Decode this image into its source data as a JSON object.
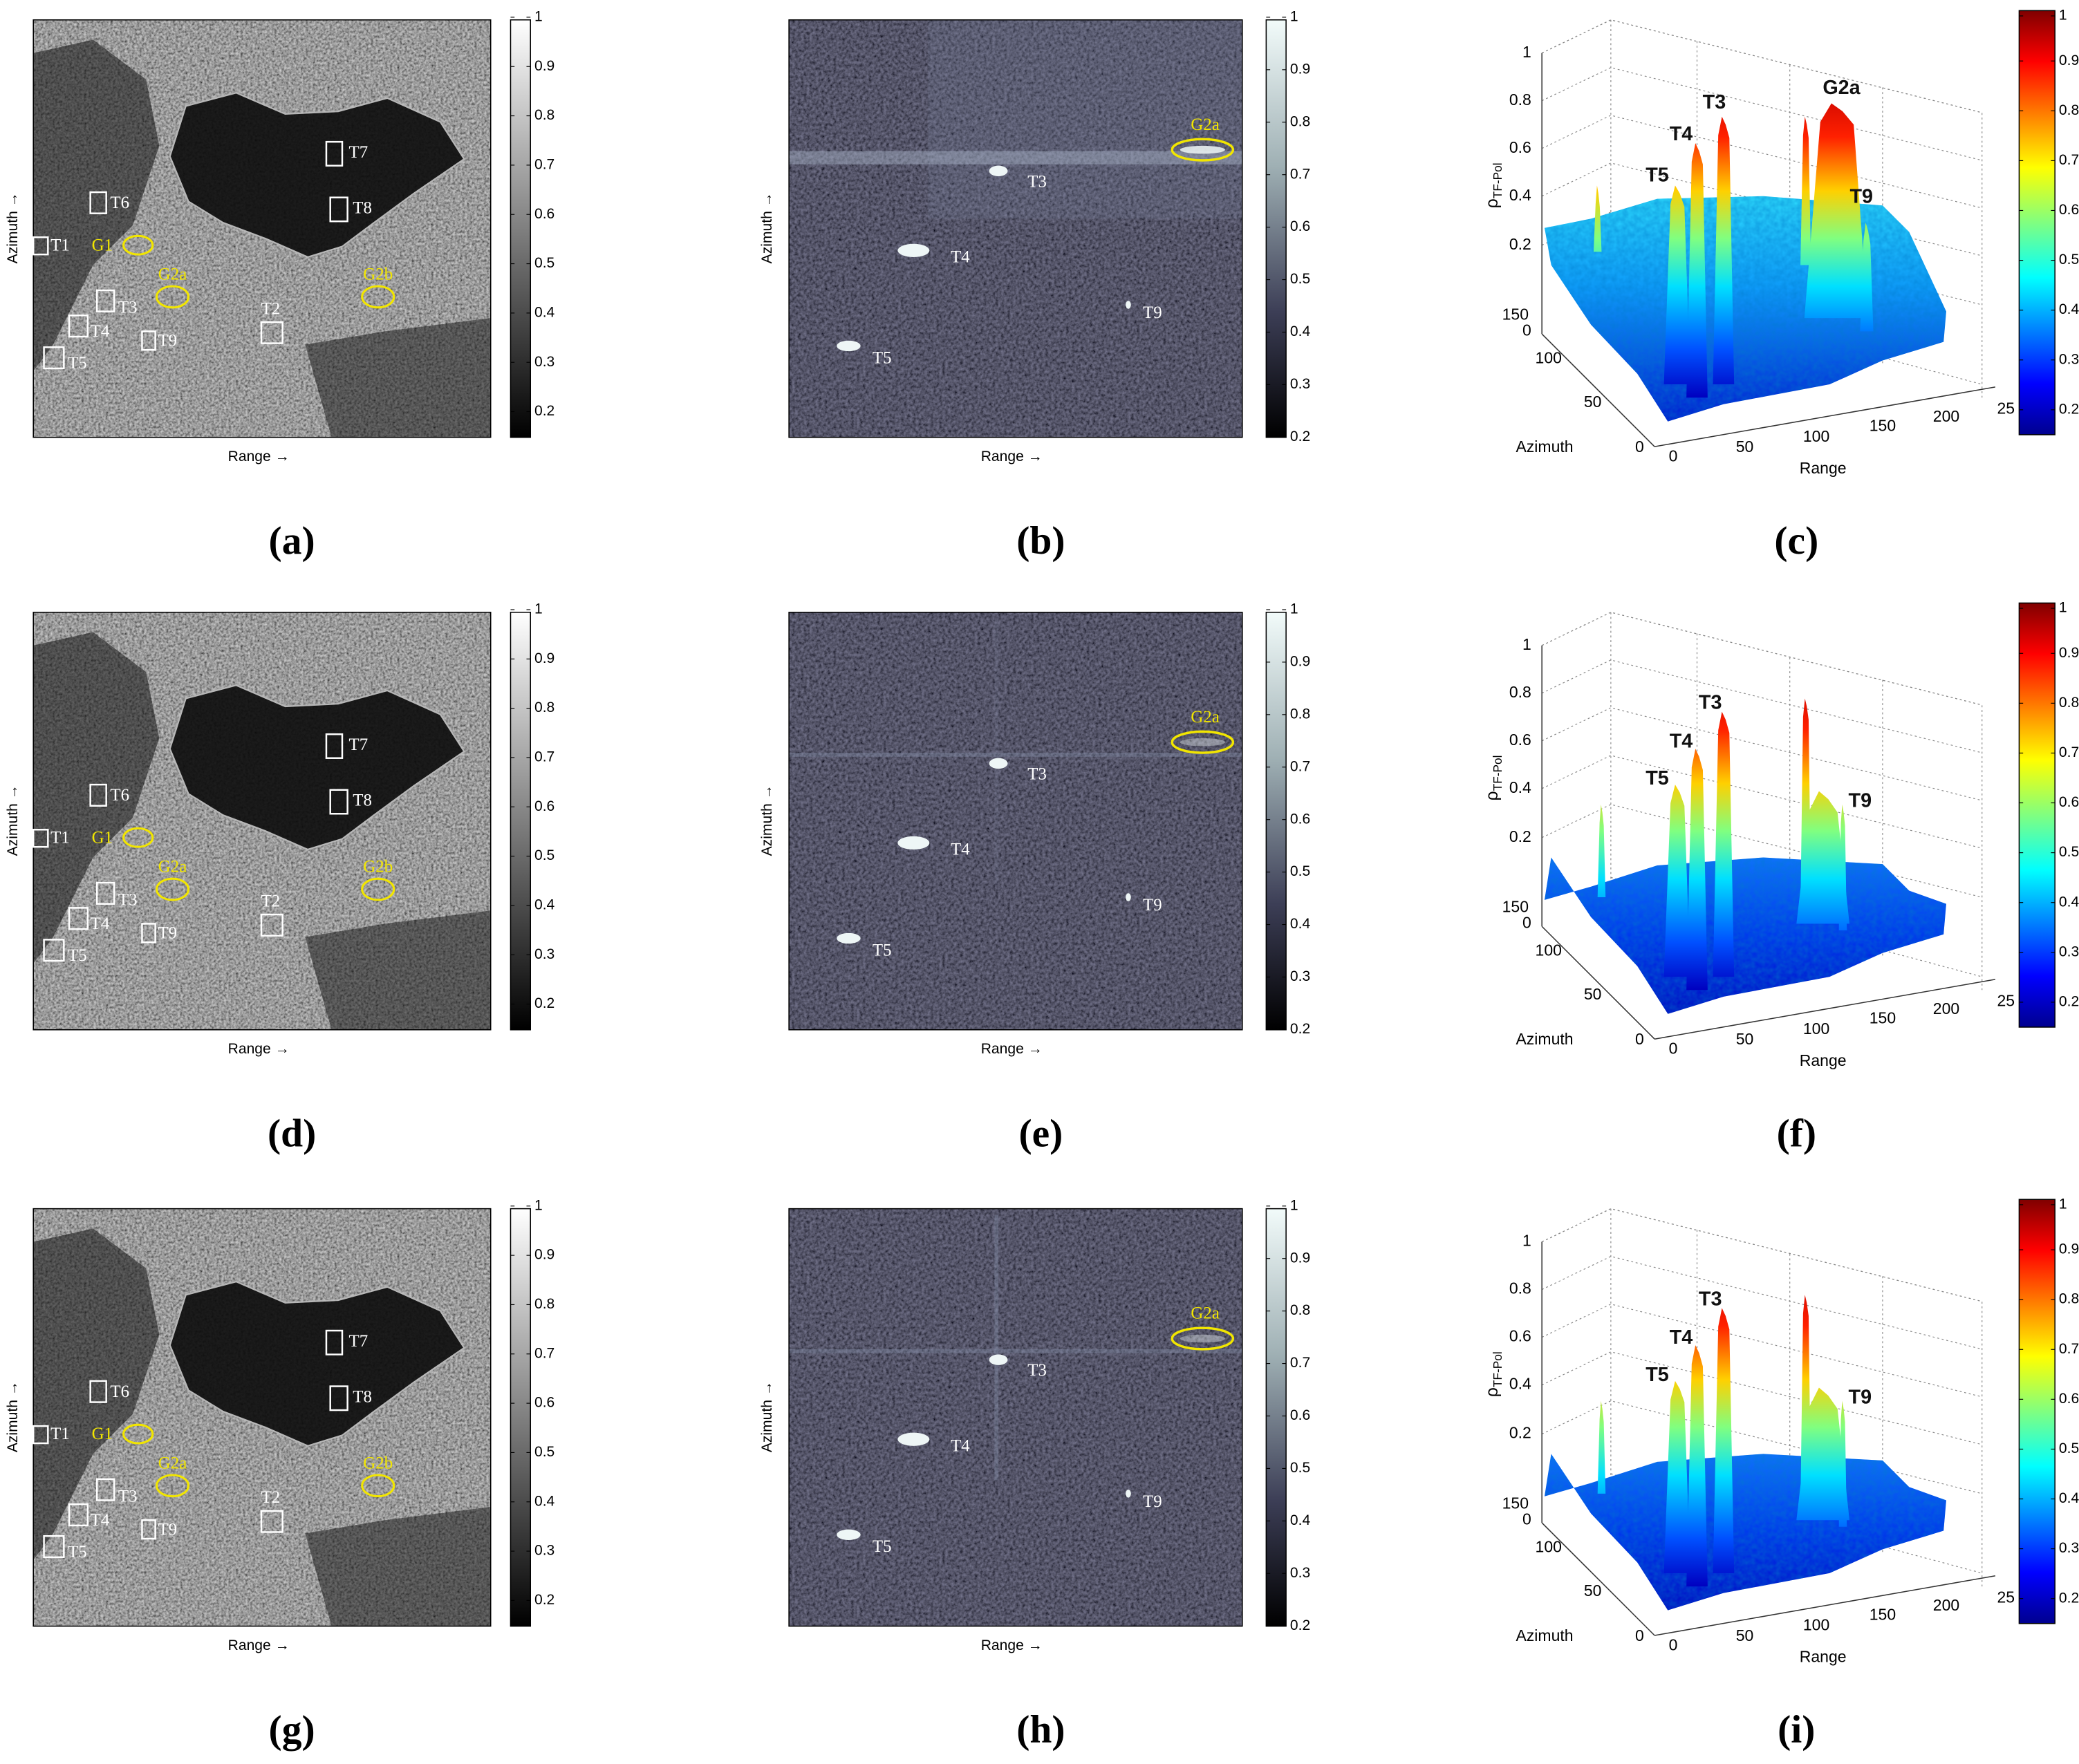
{
  "panels": [
    {
      "label": "(a)",
      "x_label": "Range →",
      "y_label": "Azimuth →",
      "colorbar_ticks": [
        1,
        0.9,
        0.8,
        0.7,
        0.6,
        0.5,
        0.4,
        0.3,
        0.2
      ],
      "annotations": [
        "T1",
        "T6",
        "G1",
        "T7",
        "T8",
        "G2a",
        "T2",
        "G2b",
        "T3",
        "T4",
        "T9",
        "T5"
      ]
    },
    {
      "label": "(b)",
      "x_label": "Range →",
      "y_label": "Azimuth →",
      "colorbar_ticks": [
        1,
        0.9,
        0.8,
        0.7,
        0.6,
        0.5,
        0.4,
        0.3,
        0.2
      ],
      "annotations": [
        "G2a",
        "T3",
        "T4",
        "T9",
        "T5"
      ]
    },
    {
      "label": "(c)",
      "x_label": "Range",
      "y_label": "Azimuth",
      "z_label": "ρ",
      "z_label_sub": "TF-Pol",
      "z_ticks": [
        0,
        0.2,
        0.4,
        0.6,
        0.8,
        1
      ],
      "azimuth_ticks": [
        0,
        50,
        100,
        150
      ],
      "range_ticks": [
        0,
        50,
        100,
        150,
        200,
        25
      ],
      "colorbar_ticks": [
        1,
        0.9,
        0.8,
        0.7,
        0.6,
        0.5,
        0.4,
        0.3,
        0.2
      ],
      "annotations": [
        "T5",
        "T4",
        "T3",
        "G2a",
        "T9"
      ]
    },
    {
      "label": "(d)",
      "x_label": "Range →",
      "y_label": "Azimuth →",
      "colorbar_ticks": [
        1,
        0.9,
        0.8,
        0.7,
        0.6,
        0.5,
        0.4,
        0.3,
        0.2
      ],
      "annotations": [
        "T1",
        "T6",
        "G1",
        "T7",
        "T8",
        "G2a",
        "T2",
        "G2b",
        "T3",
        "T4",
        "T9",
        "T5"
      ]
    },
    {
      "label": "(e)",
      "x_label": "Range →",
      "y_label": "Azimuth →",
      "colorbar_ticks": [
        1,
        0.9,
        0.8,
        0.7,
        0.6,
        0.5,
        0.4,
        0.3,
        0.2
      ],
      "annotations": [
        "G2a",
        "T3",
        "T4",
        "T9",
        "T5"
      ]
    },
    {
      "label": "(f)",
      "x_label": "Range",
      "y_label": "Azimuth",
      "z_label": "ρ",
      "z_label_sub": "TF-Pol",
      "z_ticks": [
        0,
        0.2,
        0.4,
        0.6,
        0.8,
        1
      ],
      "azimuth_ticks": [
        0,
        50,
        100,
        150
      ],
      "range_ticks": [
        0,
        50,
        100,
        150,
        200,
        25
      ],
      "colorbar_ticks": [
        1,
        0.9,
        0.8,
        0.7,
        0.6,
        0.5,
        0.4,
        0.3,
        0.2
      ],
      "annotations": [
        "T5",
        "T4",
        "T3",
        "T9"
      ]
    },
    {
      "label": "(g)",
      "x_label": "Range →",
      "y_label": "Azimuth →",
      "colorbar_ticks": [
        1,
        0.9,
        0.8,
        0.7,
        0.6,
        0.5,
        0.4,
        0.3,
        0.2
      ],
      "annotations": [
        "T1",
        "T6",
        "G1",
        "T7",
        "T8",
        "G2a",
        "T2",
        "G2b",
        "T3",
        "T4",
        "T9",
        "T5"
      ]
    },
    {
      "label": "(h)",
      "x_label": "Range →",
      "y_label": "Azimuth →",
      "colorbar_ticks": [
        1,
        0.9,
        0.8,
        0.7,
        0.6,
        0.5,
        0.4,
        0.3,
        0.2
      ],
      "annotations": [
        "G2a",
        "T3",
        "T4",
        "T9",
        "T5"
      ]
    },
    {
      "label": "(i)",
      "x_label": "Range",
      "y_label": "Azimuth",
      "z_label": "ρ",
      "z_label_sub": "TF-Pol",
      "z_ticks": [
        0,
        0.2,
        0.4,
        0.6,
        0.8,
        1
      ],
      "azimuth_ticks": [
        0,
        50,
        100,
        150
      ],
      "range_ticks": [
        0,
        50,
        100,
        150,
        200,
        25
      ],
      "colorbar_ticks": [
        1,
        0.9,
        0.8,
        0.7,
        0.6,
        0.5,
        0.4,
        0.3,
        0.2
      ],
      "annotations": [
        "T5",
        "T4",
        "T3",
        "T9"
      ]
    }
  ]
}
